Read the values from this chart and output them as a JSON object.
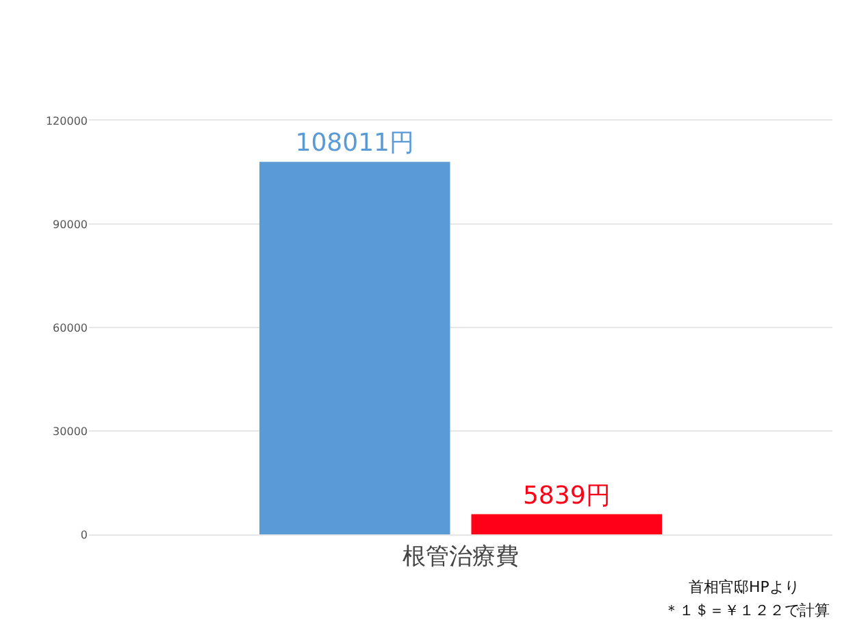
{
  "chart_data": {
    "type": "bar",
    "categories": [
      "根管治療費"
    ],
    "series": [
      {
        "color": "#5b9bd5",
        "values": [
          108011
        ],
        "value_labels": [
          "108011円"
        ]
      },
      {
        "color": "#ff0016",
        "values": [
          5839
        ],
        "value_labels": [
          "5839円"
        ]
      }
    ],
    "ylim": [
      0,
      120000
    ],
    "yticks": [
      0,
      30000,
      60000,
      90000,
      120000
    ],
    "grid": "y",
    "annotations": [
      "首相官邸HPより",
      "＊１＄＝￥１２２で計算"
    ]
  }
}
